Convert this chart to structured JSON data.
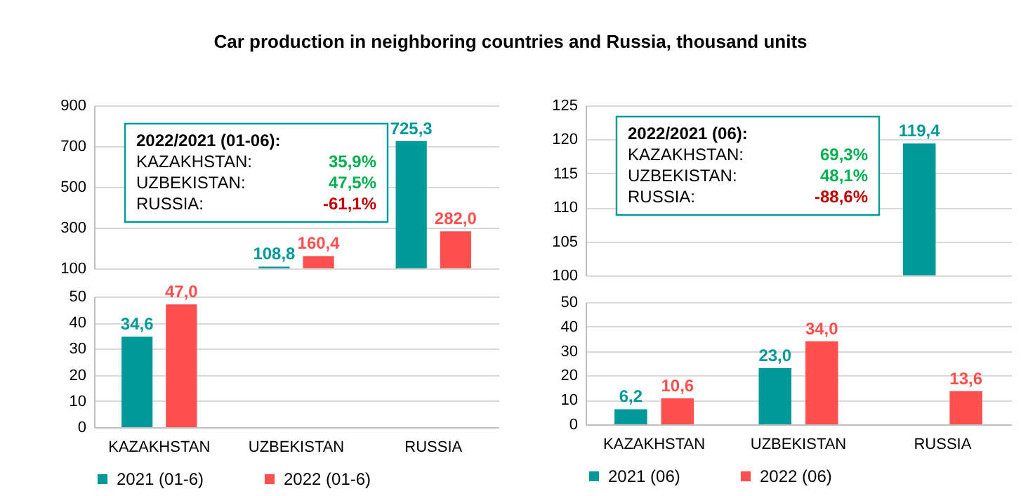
{
  "chart_data": [
    {
      "type": "bar",
      "title": "Car production in neighboring countries and Russia, thousand units",
      "categories": [
        null,
        null,
        null
      ],
      "series": [
        {
          "color": "#009999",
          "values": [
            null,
            108.8,
            725.3
          ],
          "value_labels": [
            null,
            "108,8",
            "725,3"
          ]
        },
        {
          "color": "#ff5050",
          "values": [
            null,
            160.4,
            282.0
          ],
          "value_labels": [
            null,
            "160,4",
            "282,0"
          ]
        }
      ],
      "ylim": [
        100,
        900
      ],
      "yticks": [
        100,
        300,
        500,
        700,
        900
      ],
      "grid": "y",
      "tick_labels": "y",
      "annotations": [
        "2022/2021 (01-06):",
        "KAZAKHSTAN:",
        "35,9%",
        "UZBEKISTAN:",
        "47,5%",
        "RUSSIA:",
        "-61,1%"
      ]
    },
    {
      "type": "bar",
      "categories": [
        "KAZAKHSTAN",
        "UZBEKISTAN",
        "RUSSIA"
      ],
      "series": [
        {
          "name": "2021 (01-6)",
          "color": "#009999",
          "values": [
            34.6,
            null,
            null
          ],
          "value_labels": [
            "34,6",
            null,
            null
          ]
        },
        {
          "name": "2022 (01-6)",
          "color": "#ff5050",
          "values": [
            47.0,
            null,
            null
          ],
          "value_labels": [
            "47,0",
            null,
            null
          ]
        }
      ],
      "ylim": [
        0,
        50
      ],
      "yticks": [
        0,
        10,
        20,
        30,
        40,
        50
      ],
      "grid": "y",
      "legend": "bottom"
    },
    {
      "type": "bar",
      "categories": [
        null,
        null,
        null
      ],
      "series": [
        {
          "color": "#009999",
          "values": [
            null,
            null,
            119.4
          ],
          "value_labels": [
            null,
            null,
            "119,4"
          ]
        },
        {
          "color": "#ff5050",
          "values": [
            null,
            null,
            null
          ],
          "value_labels": [
            null,
            null,
            null
          ]
        }
      ],
      "ylim": [
        100,
        125
      ],
      "yticks": [
        100,
        105,
        110,
        115,
        120,
        125
      ],
      "grid": "y",
      "tick_labels": "y",
      "annotations": [
        "2022/2021 (06):",
        "KAZAKHSTAN:",
        "69,3%",
        "UZBEKISTAN:",
        "48,1%",
        "RUSSIA:",
        "-88,6%"
      ]
    },
    {
      "type": "bar",
      "categories": [
        "KAZAKHSTAN",
        "UZBEKISTAN",
        "RUSSIA"
      ],
      "series": [
        {
          "name": "2021 (06)",
          "color": "#009999",
          "values": [
            6.2,
            23.0,
            null
          ],
          "value_labels": [
            "6,2",
            "23,0",
            null
          ]
        },
        {
          "name": "2022 (06)",
          "color": "#ff5050",
          "values": [
            10.6,
            34.0,
            13.6
          ],
          "value_labels": [
            "10,6",
            "34,0",
            "13,6"
          ]
        }
      ],
      "ylim": [
        0,
        50
      ],
      "yticks": [
        0,
        10,
        20,
        30,
        40,
        50
      ],
      "grid": "y",
      "legend": "bottom"
    }
  ]
}
